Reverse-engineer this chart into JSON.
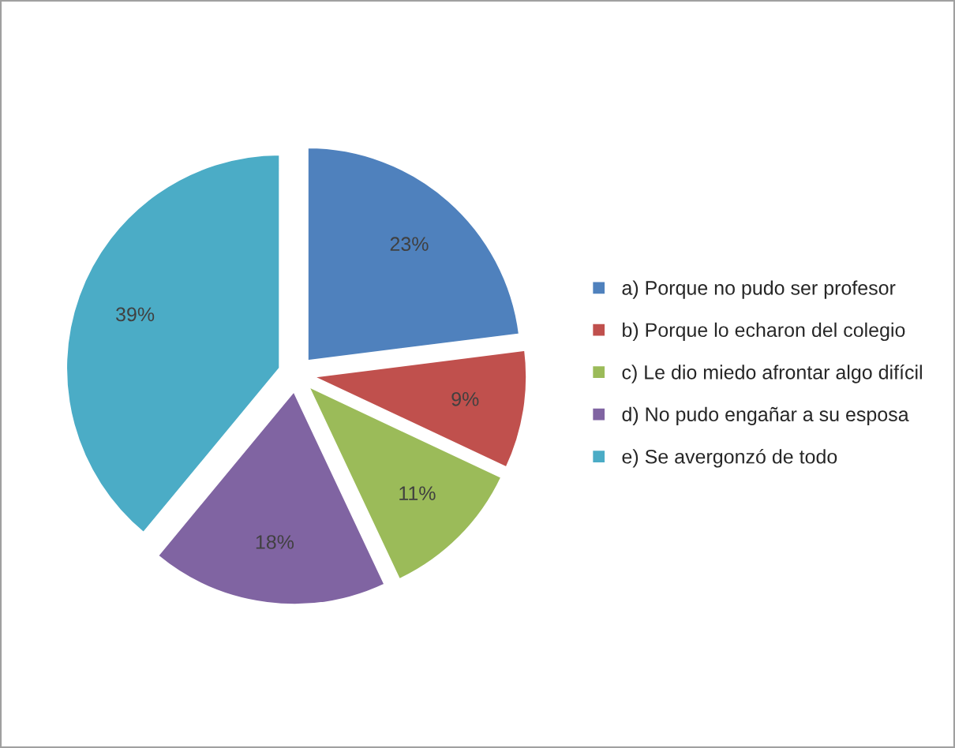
{
  "chart_data": {
    "type": "pie",
    "categories": [
      "a) Porque no pudo ser profesor",
      "b) Porque lo echaron del colegio",
      "c) Le dio miedo afrontar algo difícil",
      "d) No pudo engañar a su esposa",
      "e) Se avergonzó de todo"
    ],
    "values": [
      23,
      9,
      11,
      18,
      39
    ],
    "value_labels": [
      "23%",
      "9%",
      "11%",
      "18%",
      "39%"
    ],
    "colors": [
      "#4f81bd",
      "#c0504d",
      "#9bbb59",
      "#8064a2",
      "#4bacc6"
    ],
    "legend": "right"
  }
}
